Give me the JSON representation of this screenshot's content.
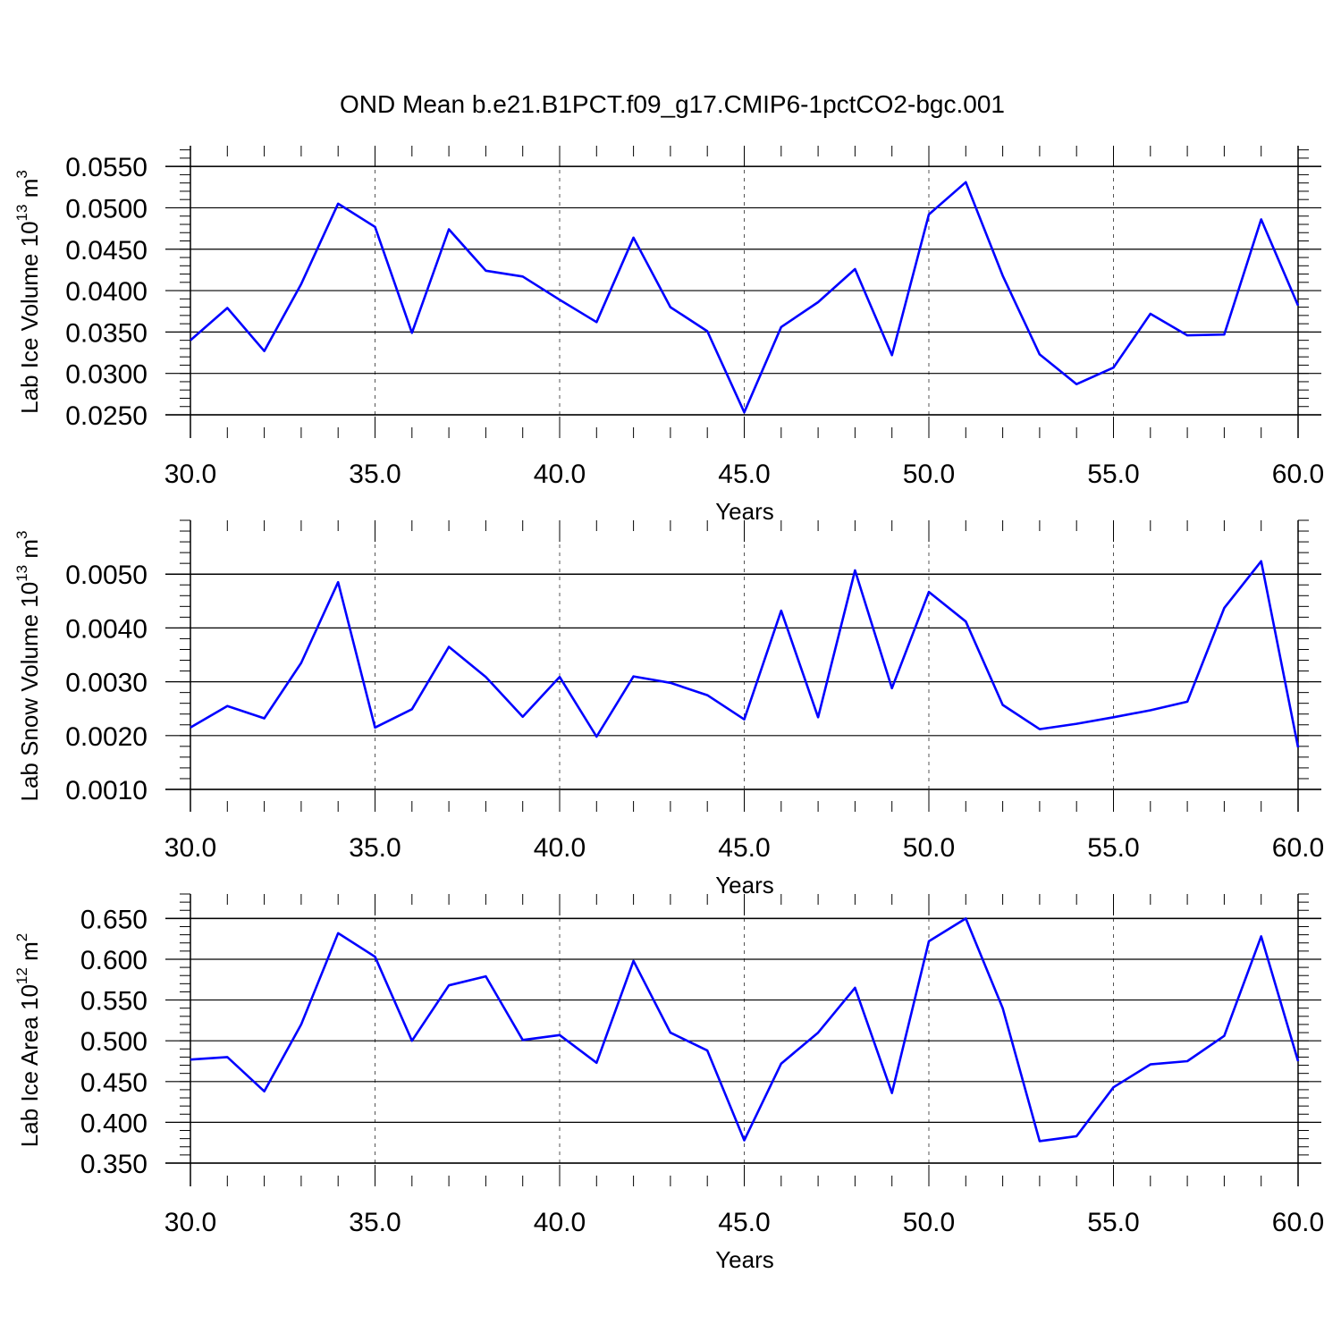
{
  "title": "OND Mean b.e21.B1PCT.f09_g17.CMIP6-1pctCO2-bgc.001",
  "colors": {
    "series": "#0000ff",
    "axis": "#000000",
    "grid": "#555555"
  },
  "chart_data": [
    {
      "type": "line",
      "ylabel": "Lab Ice Volume 10",
      "ylabel_exp": "13",
      "ylabel_unit": " m",
      "ylabel_unit_exp": "3",
      "xlabel": "Years",
      "xlim": [
        30,
        60
      ],
      "ylim": [
        0.025,
        0.0575
      ],
      "xticks": [
        30,
        35,
        40,
        45,
        50,
        55,
        60
      ],
      "xtick_labels": [
        "30.0",
        "35.0",
        "40.0",
        "45.0",
        "50.0",
        "55.0",
        "60.0"
      ],
      "yticks": [
        0.025,
        0.03,
        0.035,
        0.04,
        0.045,
        0.05,
        0.055
      ],
      "ytick_labels": [
        "0.0250",
        "0.0300",
        "0.0350",
        "0.0400",
        "0.0450",
        "0.0500",
        "0.0550"
      ],
      "x": [
        30,
        31,
        32,
        33,
        34,
        35,
        36,
        37,
        38,
        39,
        40,
        41,
        42,
        43,
        44,
        45,
        46,
        47,
        48,
        49,
        50,
        51,
        52,
        53,
        54,
        55,
        56,
        57,
        58,
        59,
        60
      ],
      "y": [
        0.034,
        0.0379,
        0.0327,
        0.0408,
        0.0505,
        0.0477,
        0.0349,
        0.0474,
        0.0424,
        0.0417,
        0.0389,
        0.0362,
        0.0464,
        0.038,
        0.0351,
        0.0253,
        0.0356,
        0.0386,
        0.0426,
        0.0322,
        0.0492,
        0.0531,
        0.0418,
        0.0323,
        0.0287,
        0.0307,
        0.0372,
        0.0346,
        0.0347,
        0.0486,
        0.0382
      ]
    },
    {
      "type": "line",
      "ylabel": "Lab Snow Volume 10",
      "ylabel_exp": "13",
      "ylabel_unit": " m",
      "ylabel_unit_exp": "3",
      "xlabel": "Years",
      "xlim": [
        30,
        60
      ],
      "ylim": [
        0.001,
        0.006
      ],
      "xticks": [
        30,
        35,
        40,
        45,
        50,
        55,
        60
      ],
      "xtick_labels": [
        "30.0",
        "35.0",
        "40.0",
        "45.0",
        "50.0",
        "55.0",
        "60.0"
      ],
      "yticks": [
        0.001,
        0.002,
        0.003,
        0.004,
        0.005
      ],
      "ytick_labels": [
        "0.0010",
        "0.0020",
        "0.0030",
        "0.0040",
        "0.0050"
      ],
      "x": [
        30,
        31,
        32,
        33,
        34,
        35,
        36,
        37,
        38,
        39,
        40,
        41,
        42,
        43,
        44,
        45,
        46,
        47,
        48,
        49,
        50,
        51,
        52,
        53,
        54,
        55,
        56,
        57,
        58,
        59,
        60
      ],
      "y": [
        0.00215,
        0.00255,
        0.00232,
        0.00335,
        0.00485,
        0.00215,
        0.00249,
        0.00365,
        0.00309,
        0.00235,
        0.00309,
        0.00198,
        0.0031,
        0.00298,
        0.00275,
        0.0023,
        0.00432,
        0.00234,
        0.00507,
        0.00288,
        0.00467,
        0.00412,
        0.00257,
        0.00212,
        0.00222,
        0.00234,
        0.00247,
        0.00263,
        0.00437,
        0.00524,
        0.00178
      ]
    },
    {
      "type": "line",
      "ylabel": "Lab Ice Area 10",
      "ylabel_exp": "12",
      "ylabel_unit": " m",
      "ylabel_unit_exp": "2",
      "xlabel": "Years",
      "xlim": [
        30,
        60
      ],
      "ylim": [
        0.35,
        0.68
      ],
      "xticks": [
        30,
        35,
        40,
        45,
        50,
        55,
        60
      ],
      "xtick_labels": [
        "30.0",
        "35.0",
        "40.0",
        "45.0",
        "50.0",
        "55.0",
        "60.0"
      ],
      "yticks": [
        0.35,
        0.4,
        0.45,
        0.5,
        0.55,
        0.6,
        0.65
      ],
      "ytick_labels": [
        "0.350",
        "0.400",
        "0.450",
        "0.500",
        "0.550",
        "0.600",
        "0.650"
      ],
      "x": [
        30,
        31,
        32,
        33,
        34,
        35,
        36,
        37,
        38,
        39,
        40,
        41,
        42,
        43,
        44,
        45,
        46,
        47,
        48,
        49,
        50,
        51,
        52,
        53,
        54,
        55,
        56,
        57,
        58,
        59,
        60
      ],
      "y": [
        0.477,
        0.48,
        0.438,
        0.52,
        0.632,
        0.603,
        0.5,
        0.568,
        0.579,
        0.501,
        0.507,
        0.473,
        0.598,
        0.51,
        0.488,
        0.378,
        0.472,
        0.51,
        0.565,
        0.436,
        0.622,
        0.65,
        0.54,
        0.377,
        0.383,
        0.443,
        0.471,
        0.475,
        0.506,
        0.628,
        0.475
      ]
    }
  ]
}
